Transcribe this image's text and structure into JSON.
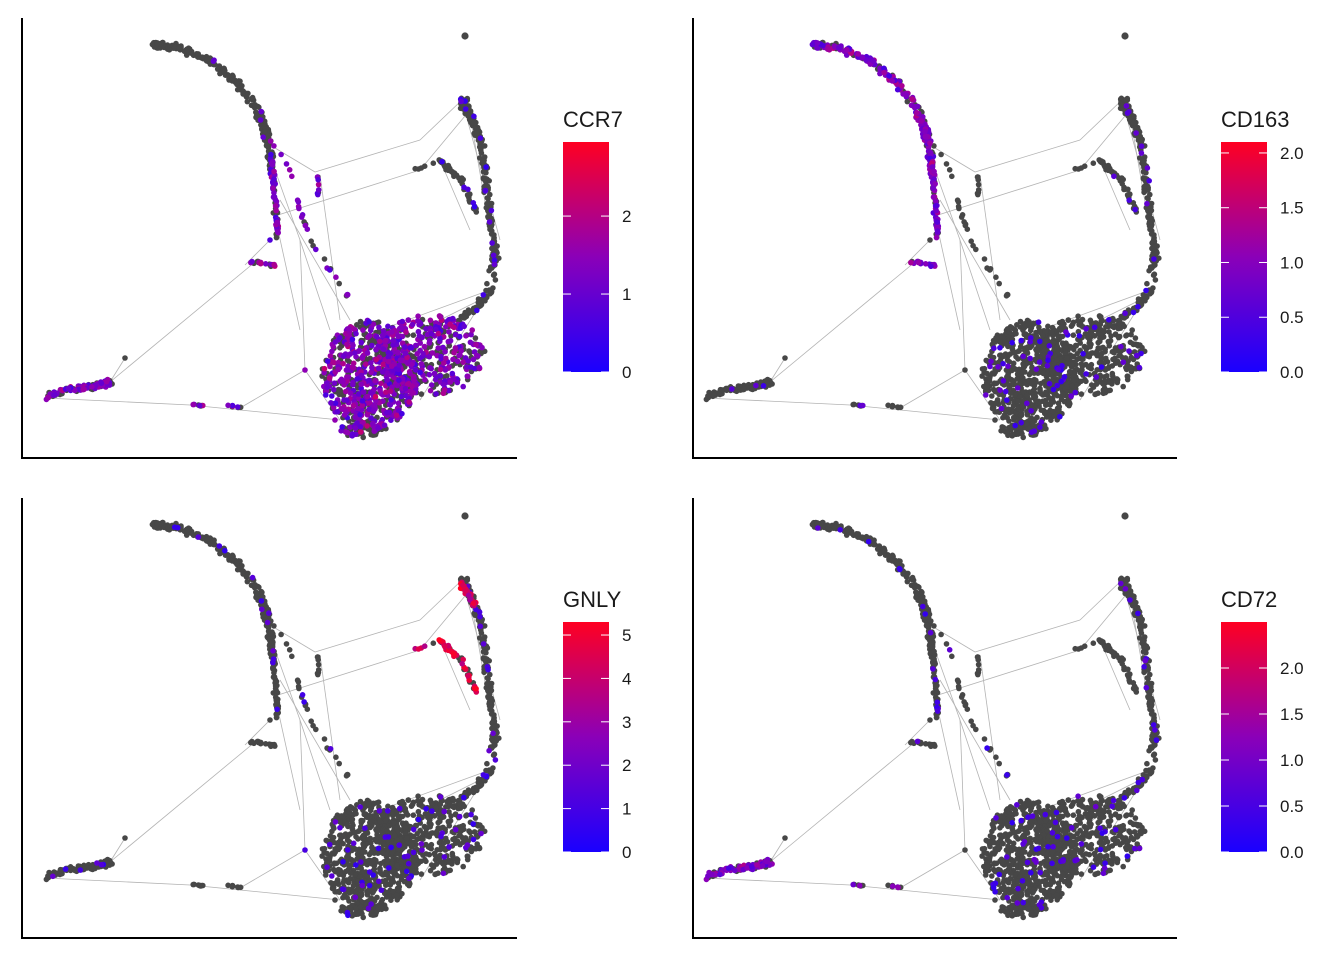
{
  "colors": {
    "background_cells": "#474747",
    "low": "#1a00ff",
    "mid": "#8b00b8",
    "high": "#ff0022",
    "edge": "#b3b3b3"
  },
  "chart_data": [
    {
      "type": "scatter",
      "gene": "CCR7",
      "legend_title": "CCR7",
      "legend_range": [
        0,
        2.95
      ],
      "legend_ticks": [
        {
          "value": 0,
          "label": "0"
        },
        {
          "value": 1,
          "label": "1"
        },
        {
          "value": 2,
          "label": "2"
        }
      ],
      "expressed_regions": [
        "main-cluster",
        "left-arm",
        "bridge",
        "stalk"
      ],
      "intensity": 0.75
    },
    {
      "type": "scatter",
      "gene": "CD163",
      "legend_title": "CD163",
      "legend_range": [
        0,
        2.1
      ],
      "legend_ticks": [
        {
          "value": 0,
          "label": "0.0"
        },
        {
          "value": 0.5,
          "label": "0.5"
        },
        {
          "value": 1,
          "label": "1.0"
        },
        {
          "value": 1.5,
          "label": "1.5"
        },
        {
          "value": 2,
          "label": "2.0"
        }
      ],
      "expressed_regions": [
        "top-arc",
        "stalk",
        "bridge-top"
      ],
      "intensity": 0.75
    },
    {
      "type": "scatter",
      "gene": "GNLY",
      "legend_title": "GNLY",
      "legend_range": [
        0,
        5.3
      ],
      "legend_ticks": [
        {
          "value": 0,
          "label": "0"
        },
        {
          "value": 1,
          "label": "1"
        },
        {
          "value": 2,
          "label": "2"
        },
        {
          "value": 3,
          "label": "3"
        },
        {
          "value": 4,
          "label": "4"
        },
        {
          "value": 5,
          "label": "5"
        }
      ],
      "expressed_regions": [
        "right-spike",
        "right-inner"
      ],
      "intensity": 0.95
    },
    {
      "type": "scatter",
      "gene": "CD72",
      "legend_title": "CD72",
      "legend_range": [
        0,
        2.5
      ],
      "legend_ticks": [
        {
          "value": 0,
          "label": "0.0"
        },
        {
          "value": 0.5,
          "label": "0.5"
        },
        {
          "value": 1,
          "label": "1.0"
        },
        {
          "value": 1.5,
          "label": "1.5"
        },
        {
          "value": 2,
          "label": "2.0"
        }
      ],
      "expressed_regions": [
        "left-arm"
      ],
      "intensity": 0.6
    }
  ]
}
